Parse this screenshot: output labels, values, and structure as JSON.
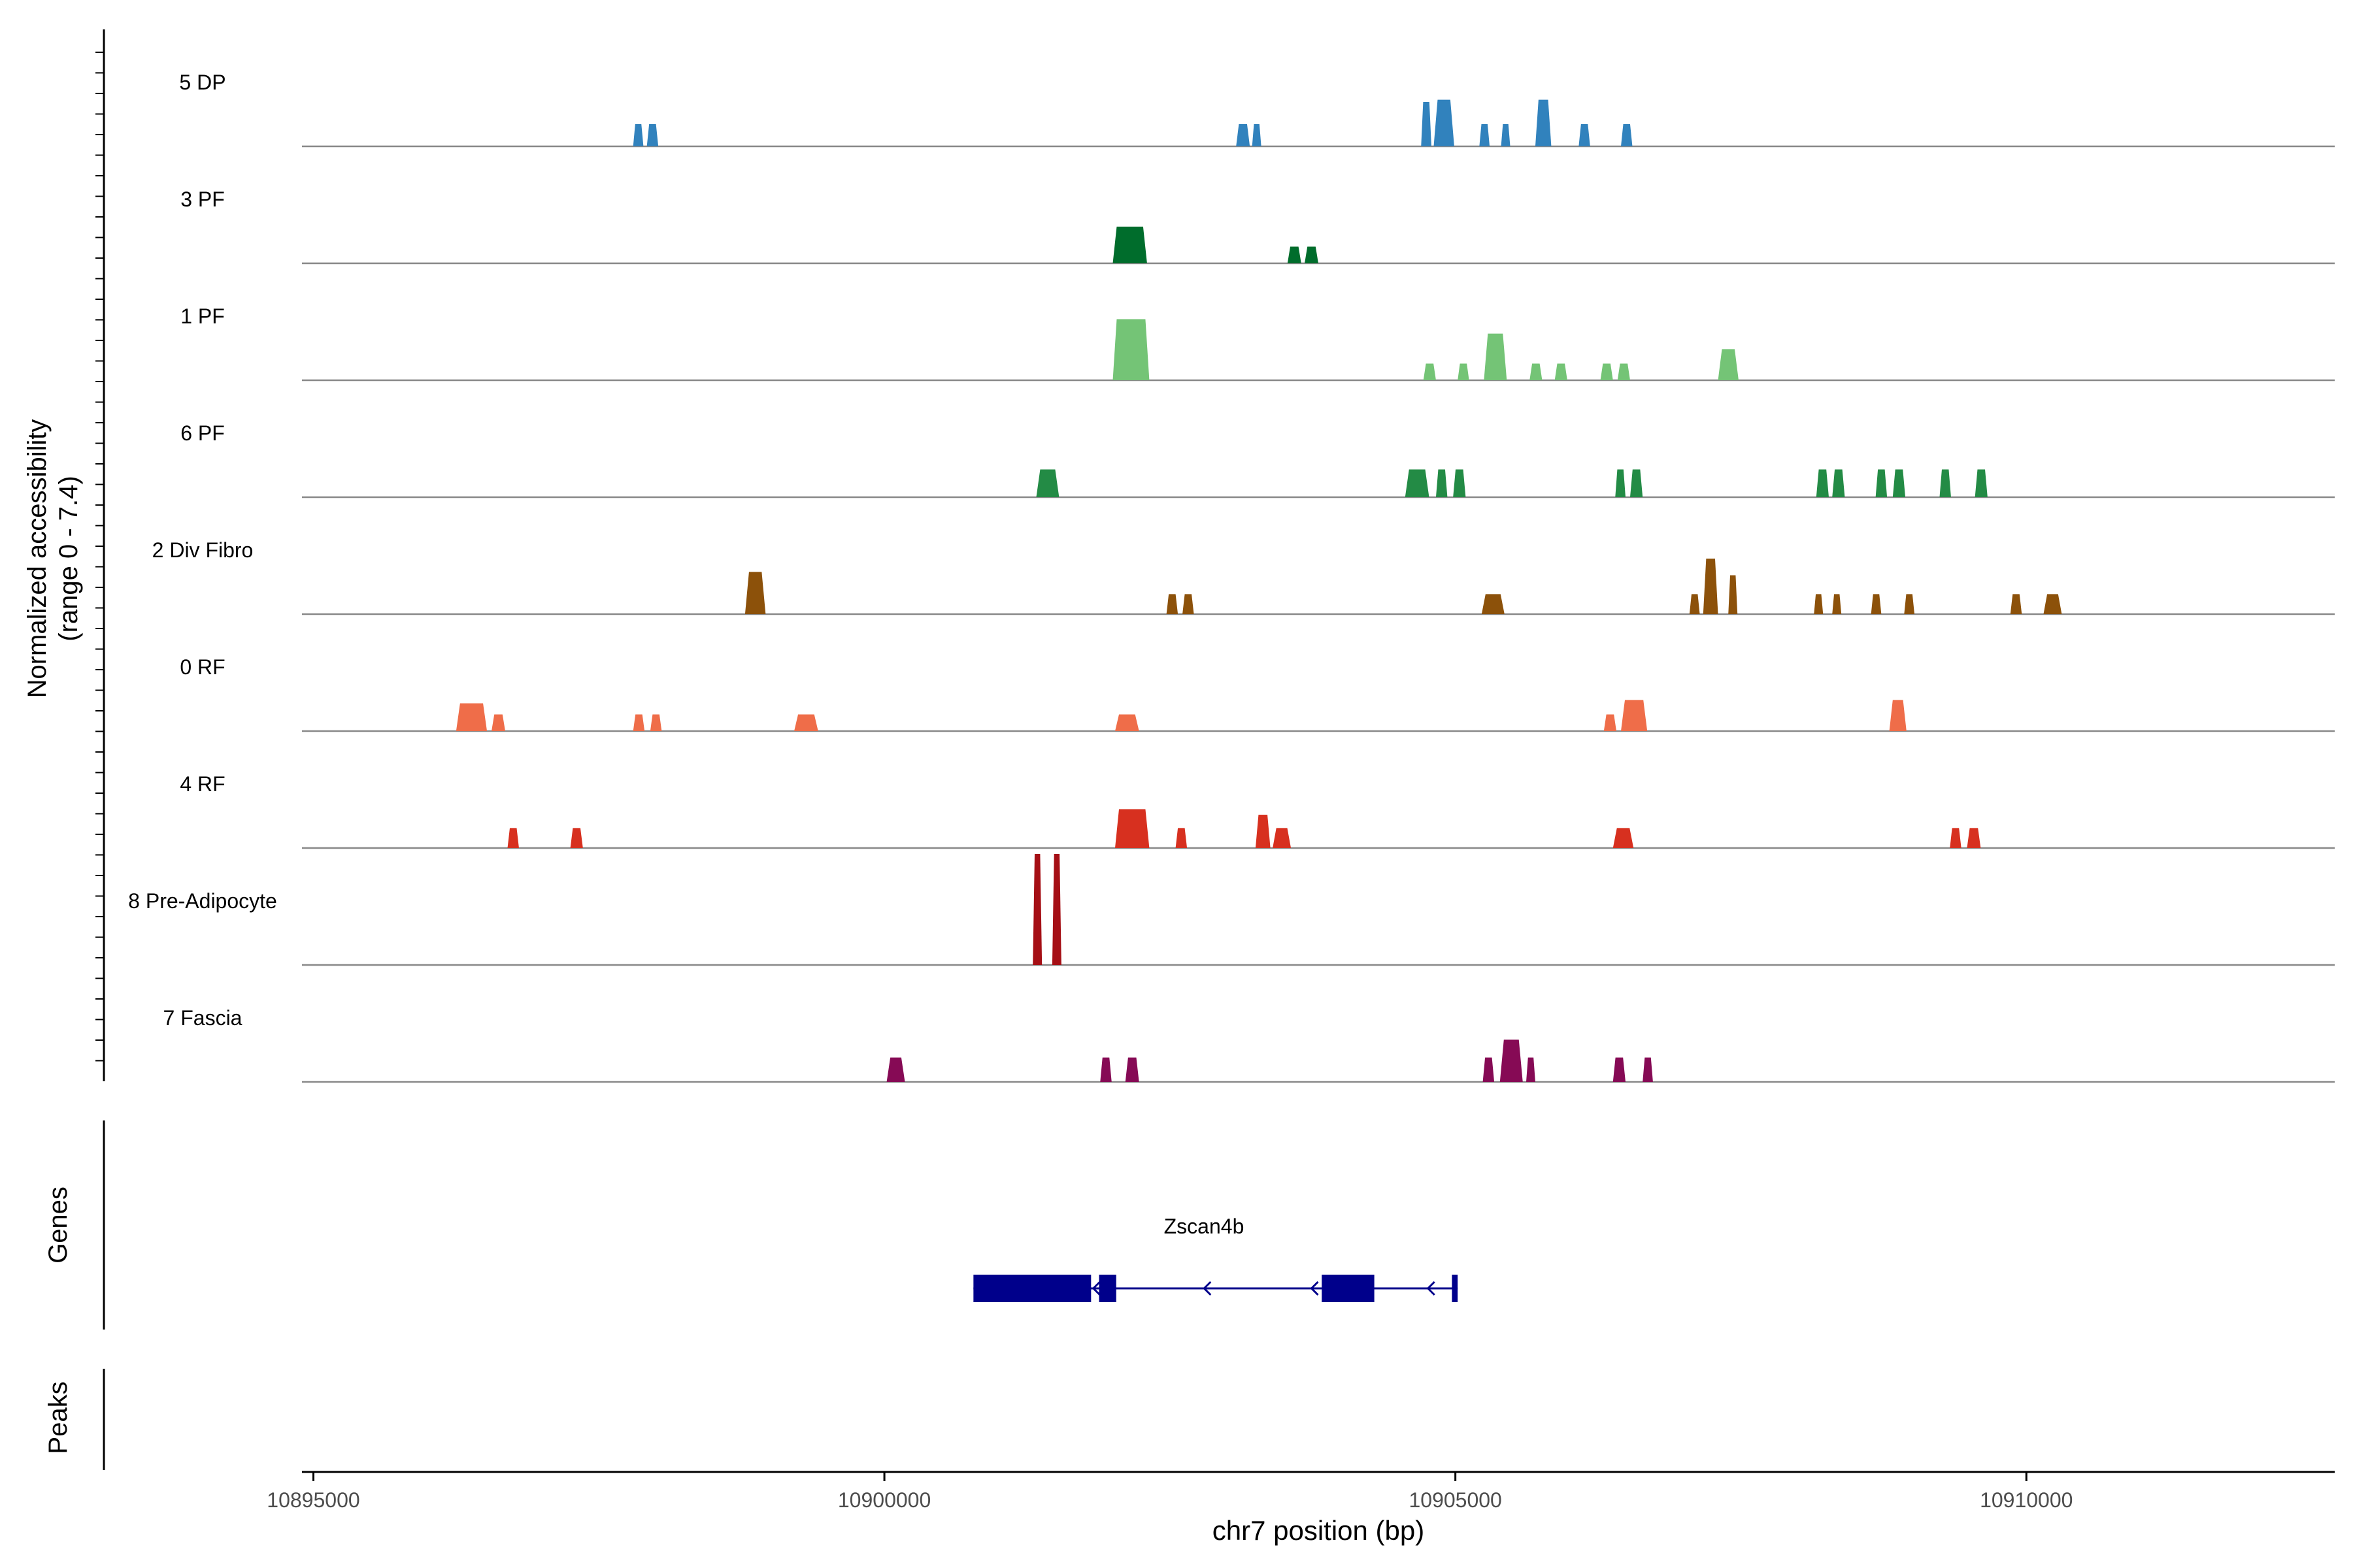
{
  "chart_data": {
    "type": "area",
    "title": "",
    "ylabel_main": "Normalized accessibility",
    "ylabel_range": "(range 0 - 7.4)",
    "y_range": [
      0,
      7.4
    ],
    "xlabel": "chr7 position (bp)",
    "xlim": [
      10894900,
      10912700
    ],
    "xticks": [
      10895000,
      10900000,
      10905000,
      10910000
    ],
    "xtick_labels": [
      "10895000",
      "10900000",
      "10905000",
      "10910000"
    ],
    "genes_label": "Genes",
    "peaks_label": "Peaks",
    "tracks": [
      {
        "name": "5 DP",
        "color": "#3182bd",
        "peaks": [
          [
            10897800,
            10897890,
            0.2
          ],
          [
            10897920,
            10898020,
            0.2
          ],
          [
            10903080,
            10903200,
            0.2
          ],
          [
            10903220,
            10903300,
            0.2
          ],
          [
            10904700,
            10904790,
            0.4
          ],
          [
            10904810,
            10904990,
            0.42
          ],
          [
            10905210,
            10905300,
            0.2
          ],
          [
            10905400,
            10905480,
            0.2
          ],
          [
            10905700,
            10905840,
            0.42
          ],
          [
            10906080,
            10906180,
            0.2
          ],
          [
            10906450,
            10906550,
            0.2
          ]
        ]
      },
      {
        "name": "3 PF",
        "color": "#006d2c",
        "peaks": [
          [
            10902000,
            10902300,
            0.33
          ],
          [
            10903530,
            10903650,
            0.15
          ],
          [
            10903680,
            10903800,
            0.15
          ]
        ]
      },
      {
        "name": "1 PF",
        "color": "#74c476",
        "peaks": [
          [
            10902000,
            10902320,
            0.55
          ],
          [
            10904720,
            10904830,
            0.15
          ],
          [
            10905020,
            10905120,
            0.15
          ],
          [
            10905250,
            10905450,
            0.42
          ],
          [
            10905650,
            10905760,
            0.15
          ],
          [
            10905870,
            10905980,
            0.15
          ],
          [
            10906270,
            10906380,
            0.15
          ],
          [
            10906420,
            10906530,
            0.15
          ],
          [
            10907300,
            10907480,
            0.28
          ]
        ]
      },
      {
        "name": "6 PF",
        "color": "#238b45",
        "peaks": [
          [
            10901330,
            10901530,
            0.25
          ],
          [
            10904560,
            10904770,
            0.25
          ],
          [
            10904830,
            10904930,
            0.25
          ],
          [
            10904980,
            10905090,
            0.25
          ],
          [
            10906400,
            10906490,
            0.25
          ],
          [
            10906530,
            10906640,
            0.25
          ],
          [
            10908160,
            10908270,
            0.25
          ],
          [
            10908300,
            10908410,
            0.25
          ],
          [
            10908680,
            10908780,
            0.25
          ],
          [
            10908830,
            10908940,
            0.25
          ],
          [
            10909240,
            10909340,
            0.25
          ],
          [
            10909550,
            10909660,
            0.25
          ]
        ]
      },
      {
        "name": "2 Div Fibro",
        "color": "#8c510a",
        "peaks": [
          [
            10898780,
            10898960,
            0.38
          ],
          [
            10902470,
            10902570,
            0.18
          ],
          [
            10902610,
            10902710,
            0.18
          ],
          [
            10905230,
            10905430,
            0.18
          ],
          [
            10907050,
            10907140,
            0.18
          ],
          [
            10907170,
            10907300,
            0.5
          ],
          [
            10907390,
            10907470,
            0.35
          ],
          [
            10908140,
            10908220,
            0.18
          ],
          [
            10908300,
            10908380,
            0.18
          ],
          [
            10908640,
            10908730,
            0.18
          ],
          [
            10908930,
            10909020,
            0.18
          ],
          [
            10909860,
            10909960,
            0.18
          ],
          [
            10910150,
            10910310,
            0.18
          ]
        ]
      },
      {
        "name": "0 RF",
        "color": "#ef6d49",
        "peaks": [
          [
            10896250,
            10896520,
            0.25
          ],
          [
            10896560,
            10896680,
            0.15
          ],
          [
            10897800,
            10897900,
            0.15
          ],
          [
            10897950,
            10898050,
            0.15
          ],
          [
            10899210,
            10899420,
            0.15
          ],
          [
            10902020,
            10902230,
            0.15
          ],
          [
            10906300,
            10906410,
            0.15
          ],
          [
            10906450,
            10906680,
            0.28
          ],
          [
            10908800,
            10908950,
            0.28
          ]
        ]
      },
      {
        "name": "4 RF",
        "color": "#d7301f",
        "peaks": [
          [
            10896700,
            10896800,
            0.18
          ],
          [
            10897250,
            10897360,
            0.18
          ],
          [
            10902020,
            10902320,
            0.35
          ],
          [
            10902550,
            10902650,
            0.18
          ],
          [
            10903250,
            10903380,
            0.3
          ],
          [
            10903400,
            10903560,
            0.18
          ],
          [
            10906380,
            10906560,
            0.18
          ],
          [
            10909330,
            10909430,
            0.18
          ],
          [
            10909480,
            10909600,
            0.18
          ]
        ]
      },
      {
        "name": "8 Pre-Adipocyte",
        "color": "#a50f15",
        "peaks": [
          [
            10901300,
            10901380,
            1.0
          ],
          [
            10901470,
            10901550,
            1.0
          ]
        ]
      },
      {
        "name": "7 Fascia",
        "color": "#860a55",
        "peaks": [
          [
            10900020,
            10900180,
            0.22
          ],
          [
            10901890,
            10901990,
            0.22
          ],
          [
            10902110,
            10902230,
            0.22
          ],
          [
            10905240,
            10905340,
            0.22
          ],
          [
            10905390,
            10905590,
            0.38
          ],
          [
            10905620,
            10905700,
            0.22
          ],
          [
            10906380,
            10906490,
            0.22
          ],
          [
            10906640,
            10906730,
            0.22
          ]
        ]
      }
    ],
    "gene": {
      "name": "Zscan4b",
      "strand": "-",
      "start": 10900780,
      "end": 10905020,
      "color": "#00008b",
      "exons": [
        [
          10900780,
          10901810
        ],
        [
          10901880,
          10902030
        ],
        [
          10903830,
          10904290
        ],
        [
          10904970,
          10905020
        ]
      ],
      "arrows": [
        10901830,
        10902800,
        10903740,
        10904760
      ]
    }
  }
}
